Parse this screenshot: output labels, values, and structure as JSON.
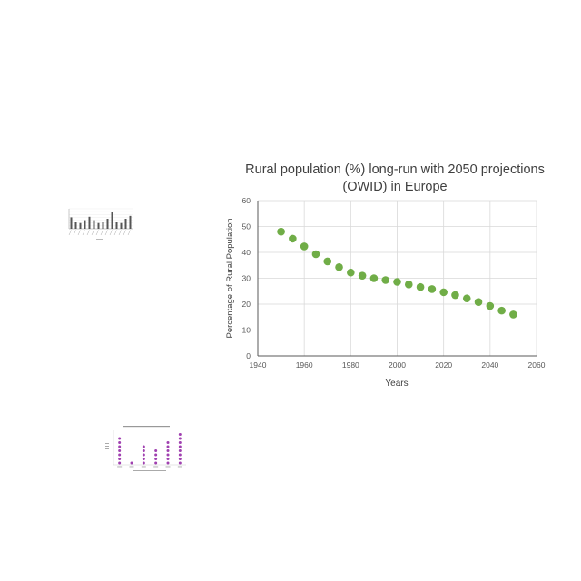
{
  "chart_data": [
    {
      "type": "bar",
      "title_lines": [
        "",
        ""
      ],
      "values": [
        4,
        2.5,
        2,
        3,
        4.2,
        3,
        2,
        2.5,
        3.5,
        6,
        2.5,
        2,
        3.5,
        4.5
      ]
    },
    {
      "type": "scatter",
      "title": "Rural population (%) long-run with 2050 projections (OWID) in Europe",
      "title_lines": [
        "Rural population (%) long-run with 2050 projections",
        "(OWID) in Europe"
      ],
      "xlabel": "Years",
      "ylabel": "Percentage of Rural Population",
      "xlim": [
        1940,
        2060
      ],
      "ylim": [
        0,
        60
      ],
      "xticks": [
        1940,
        1960,
        1980,
        2000,
        2020,
        2040,
        2060
      ],
      "yticks": [
        0,
        10,
        20,
        30,
        40,
        50,
        60
      ],
      "grid": true,
      "color": "#70ad47",
      "x": [
        1950,
        1955,
        1960,
        1965,
        1970,
        1975,
        1980,
        1985,
        1990,
        1995,
        2000,
        2005,
        2010,
        2015,
        2020,
        2025,
        2030,
        2035,
        2040,
        2045,
        2050
      ],
      "y": [
        48,
        45.3,
        42.3,
        39.3,
        36.5,
        34.3,
        32.2,
        31,
        30,
        29.3,
        28.6,
        27.6,
        26.6,
        25.8,
        24.6,
        23.5,
        22.2,
        20.8,
        19.3,
        17.5,
        16
      ]
    },
    {
      "type": "scatter",
      "title": "",
      "color": "#a040b0",
      "x": [
        1,
        2,
        3,
        4,
        5,
        6
      ],
      "y": [
        7,
        1,
        5,
        4,
        6,
        8
      ]
    }
  ]
}
